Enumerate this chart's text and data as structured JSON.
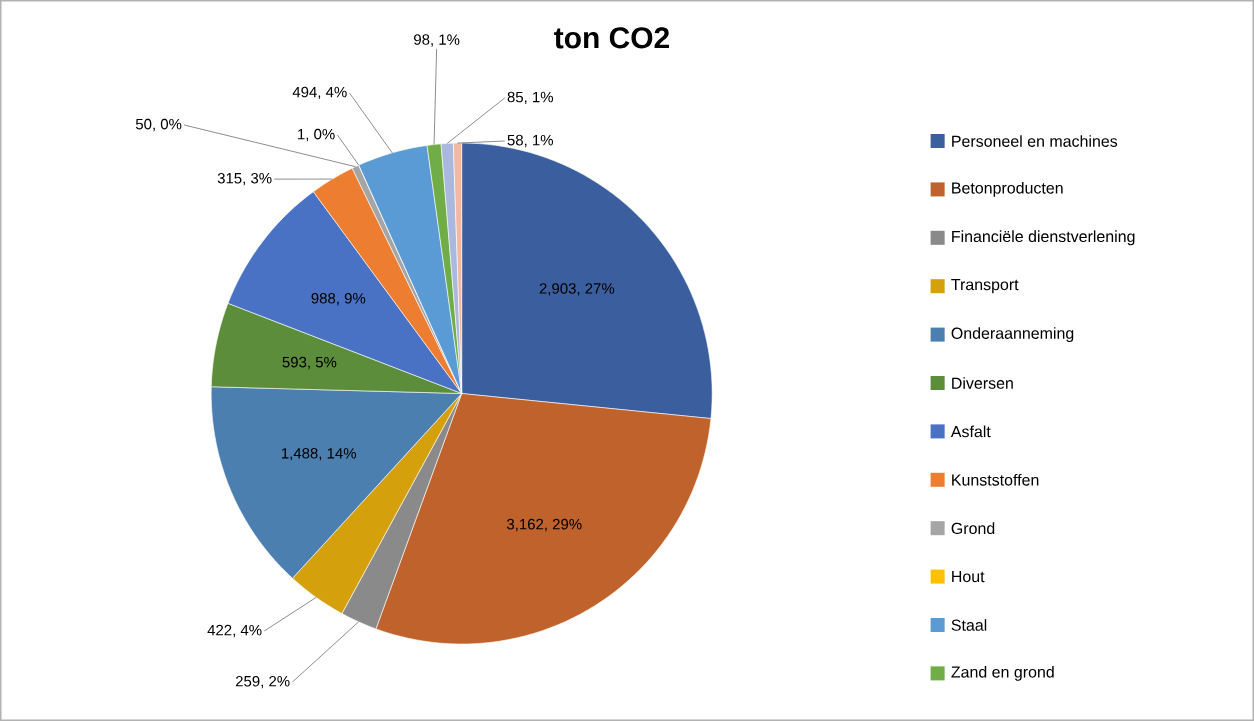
{
  "chart_data": {
    "type": "pie",
    "title": "ton CO2",
    "categories": [
      "Personeel en machines",
      "Betonproducten",
      "Financiële dienstverlening",
      "Transport",
      "Onderaanneming",
      "Diversen",
      "Asfalt",
      "Kunststoffen",
      "Grond",
      "Hout",
      "Staal",
      "Zand en grond",
      null,
      null
    ],
    "values": [
      2903,
      3162,
      259,
      422,
      1488,
      593,
      988,
      315,
      50,
      1,
      494,
      98,
      85,
      58
    ],
    "value_labels": [
      "2,903, 27%",
      "3,162, 29%",
      "259, 2%",
      "422, 4%",
      "1,488, 14%",
      "593, 5%",
      "988, 9%",
      "315, 3%",
      "50, 0%",
      "1, 0%",
      "494, 4%",
      "98, 1%",
      "85, 1%",
      "58, 1%"
    ],
    "colors": [
      "#3a5e9e",
      "#c0622b",
      "#8a8a8a",
      "#d4a00c",
      "#4a7fb0",
      "#5b8d3a",
      "#4a72c4",
      "#ed7d31",
      "#a5a5a5",
      "#ffc000",
      "#5b9bd5",
      "#70ad47",
      "#a9b8dc",
      "#f4b8a0"
    ],
    "legend": "right"
  }
}
